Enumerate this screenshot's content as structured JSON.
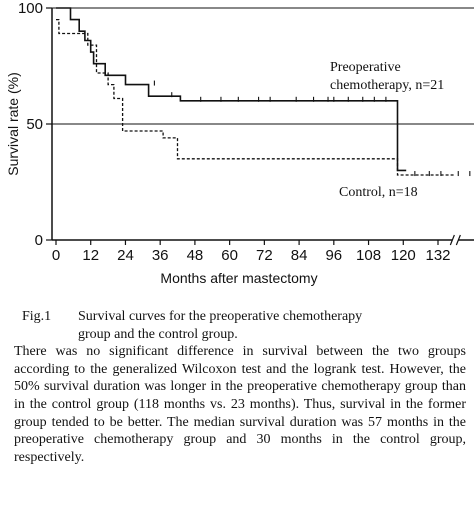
{
  "chart_data": {
    "type": "line",
    "subtype": "kaplan-meier step",
    "xlabel": "Months after mastectomy",
    "ylabel": "Survival rate (%)",
    "xlim": [
      0,
      144
    ],
    "ylim": [
      0,
      100
    ],
    "x_ticks": [
      0,
      12,
      24,
      36,
      48,
      60,
      72,
      84,
      96,
      108,
      120,
      132
    ],
    "y_ticks": [
      0,
      50,
      100
    ],
    "y_tick_labels": [
      "0",
      "50",
      "100"
    ],
    "reference_line_y": 50,
    "axis_break_x": 138,
    "series": [
      {
        "name": "Preoperative chemotherapy, n=21",
        "label_lines": [
          "Preoperative",
          "chemotherapy, n=21"
        ],
        "style": "solid",
        "steps": [
          [
            0,
            100
          ],
          [
            5,
            100
          ],
          [
            5,
            95
          ],
          [
            8,
            95
          ],
          [
            8,
            90
          ],
          [
            10,
            90
          ],
          [
            10,
            86
          ],
          [
            12,
            86
          ],
          [
            12,
            81
          ],
          [
            13,
            81
          ],
          [
            13,
            76
          ],
          [
            17,
            76
          ],
          [
            17,
            71
          ],
          [
            24,
            71
          ],
          [
            24,
            67
          ],
          [
            32,
            67
          ],
          [
            32,
            62
          ],
          [
            43,
            62
          ],
          [
            43,
            60
          ],
          [
            118,
            60
          ],
          [
            118,
            30
          ],
          [
            121,
            30
          ]
        ],
        "censored": [
          [
            34,
            67
          ],
          [
            40,
            62
          ],
          [
            50,
            60
          ],
          [
            57,
            60
          ],
          [
            63,
            60
          ],
          [
            70,
            60
          ],
          [
            74,
            60
          ],
          [
            83,
            60
          ],
          [
            89,
            60
          ],
          [
            94,
            60
          ],
          [
            96,
            60
          ],
          [
            101,
            60
          ],
          [
            106,
            60
          ],
          [
            110,
            60
          ],
          [
            114,
            60
          ]
        ]
      },
      {
        "name": "Control, n=18",
        "label_lines": [
          "Control, n=18"
        ],
        "style": "dashed",
        "steps": [
          [
            0,
            95
          ],
          [
            1,
            95
          ],
          [
            1,
            89
          ],
          [
            11,
            89
          ],
          [
            11,
            84
          ],
          [
            14,
            84
          ],
          [
            14,
            72
          ],
          [
            18,
            72
          ],
          [
            18,
            67
          ],
          [
            20,
            67
          ],
          [
            20,
            61
          ],
          [
            23,
            61
          ],
          [
            23,
            47
          ],
          [
            37,
            47
          ],
          [
            37,
            44
          ],
          [
            42,
            44
          ],
          [
            42,
            35
          ],
          [
            118,
            35
          ],
          [
            118,
            28
          ],
          [
            138,
            28
          ]
        ],
        "censored": [
          [
            124,
            28
          ],
          [
            129,
            28
          ],
          [
            133,
            28
          ],
          [
            139,
            28
          ],
          [
            143,
            28
          ]
        ]
      }
    ]
  },
  "caption": {
    "label": "Fig.1",
    "title_lines": [
      "Survival curves for the preoperative chemotherapy",
      "group and the control group."
    ],
    "body": "There was no significant difference in survival between the two groups according to the generalized Wilcoxon test and the logrank test.  However, the 50% survival duration was longer in the preoperative chemotherapy group than in the control group (118 months vs. 23 months). Thus, survival in the former group tended to be better.  The median survival duration was 57 months in the preoperative chemotherapy group and 30 months in the control group, respectively."
  }
}
